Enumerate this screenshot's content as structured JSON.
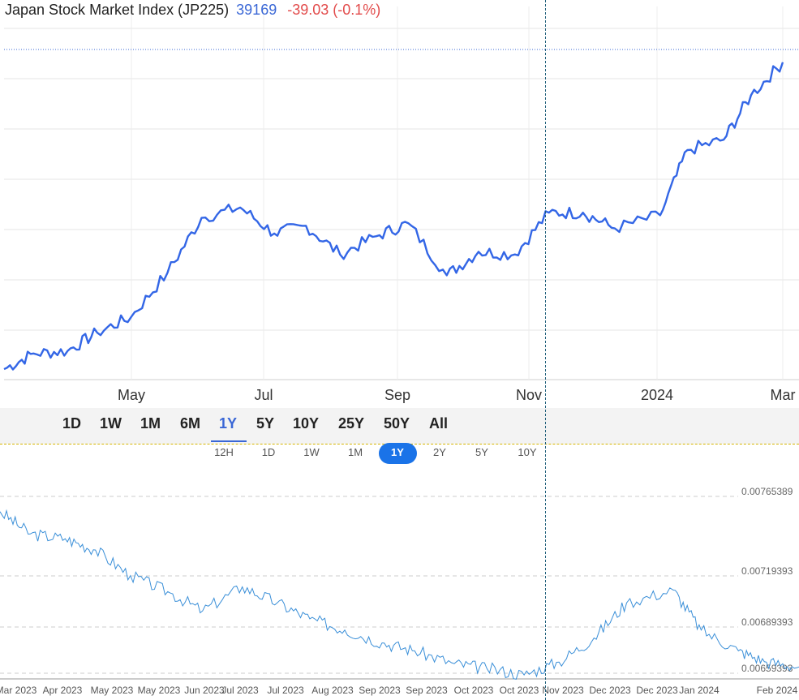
{
  "header": {
    "title": "Japan Stock Market Index (JP225)",
    "price": "39169",
    "change": "-39.03 (-0.1%)"
  },
  "colors": {
    "top_line": "#3366e6",
    "bottom_line": "#3a8fd8",
    "price_text": "#3a67d6",
    "change_text": "#e24b4b",
    "active_pill": "#1a73e8"
  },
  "range_buttons": [
    "1D",
    "1W",
    "1M",
    "6M",
    "1Y",
    "5Y",
    "10Y",
    "25Y",
    "50Y",
    "All"
  ],
  "range_active": "1Y",
  "sub_buttons": [
    "12H",
    "1D",
    "1W",
    "1M",
    "1Y",
    "2Y",
    "5Y",
    "10Y"
  ],
  "sub_active": "1Y",
  "chart_data": [
    {
      "type": "line",
      "x_tick_labels": [
        "May",
        "Jul",
        "Sep",
        "Nov",
        "2024",
        "Mar"
      ],
      "x_range": [
        "2023-03-21",
        "2024-02-27"
      ],
      "y_range": [
        27000,
        40000
      ],
      "grid": true,
      "series": [
        {
          "x": [
            "2023-03-21",
            "2023-04-03",
            "2023-04-18",
            "2023-05-01",
            "2023-05-16",
            "2023-06-01",
            "2023-06-16",
            "2023-07-03",
            "2023-07-18",
            "2023-08-01",
            "2023-08-16",
            "2023-09-01",
            "2023-09-15",
            "2023-10-02",
            "2023-10-16",
            "2023-11-01",
            "2023-11-16",
            "2023-12-01",
            "2023-12-15",
            "2024-01-04",
            "2024-01-16",
            "2024-02-01",
            "2024-02-13",
            "2024-02-27"
          ],
          "y": [
            27400,
            28000,
            28100,
            28800,
            29400,
            31100,
            33200,
            33600,
            32600,
            32900,
            31800,
            32500,
            33000,
            31000,
            31900,
            31800,
            33400,
            33400,
            32800,
            33300,
            35800,
            36200,
            37900,
            39169
          ]
        }
      ]
    },
    {
      "type": "line",
      "x_tick_labels": [
        "Mar 2023",
        "Apr 2023",
        "May 2023",
        "May 2023",
        "Jun 2023",
        "Jul 2023",
        "Jul 2023",
        "Aug 2023",
        "Sep 2023",
        "Sep 2023",
        "Oct 2023",
        "Oct 2023",
        "Nov 2023",
        "Dec 2023",
        "Dec 2023",
        "Jan 2024",
        "Feb 2024"
      ],
      "y_tick_labels": [
        "0.00765389",
        "0.00719393",
        "0.00689393",
        "0.00659393"
      ],
      "y_range": [
        0.00658,
        0.00775
      ],
      "grid": true,
      "series": [
        {
          "x": [
            "2023-03-21",
            "2023-04-03",
            "2023-04-18",
            "2023-05-01",
            "2023-05-16",
            "2023-06-01",
            "2023-06-16",
            "2023-07-03",
            "2023-07-18",
            "2023-08-01",
            "2023-08-16",
            "2023-09-01",
            "2023-09-15",
            "2023-10-02",
            "2023-10-16",
            "2023-11-01",
            "2023-11-16",
            "2023-12-01",
            "2023-12-15",
            "2024-01-04",
            "2024-01-16",
            "2024-02-01",
            "2024-02-13",
            "2024-02-27"
          ],
          "y": [
            0.00762,
            0.00748,
            0.00745,
            0.00738,
            0.00722,
            0.00712,
            0.007,
            0.00715,
            0.00705,
            0.00695,
            0.00688,
            0.0068,
            0.00675,
            0.00667,
            0.00664,
            0.0066,
            0.00668,
            0.00683,
            0.00705,
            0.00713,
            0.00688,
            0.00675,
            0.00668,
            0.00665
          ]
        }
      ]
    }
  ]
}
